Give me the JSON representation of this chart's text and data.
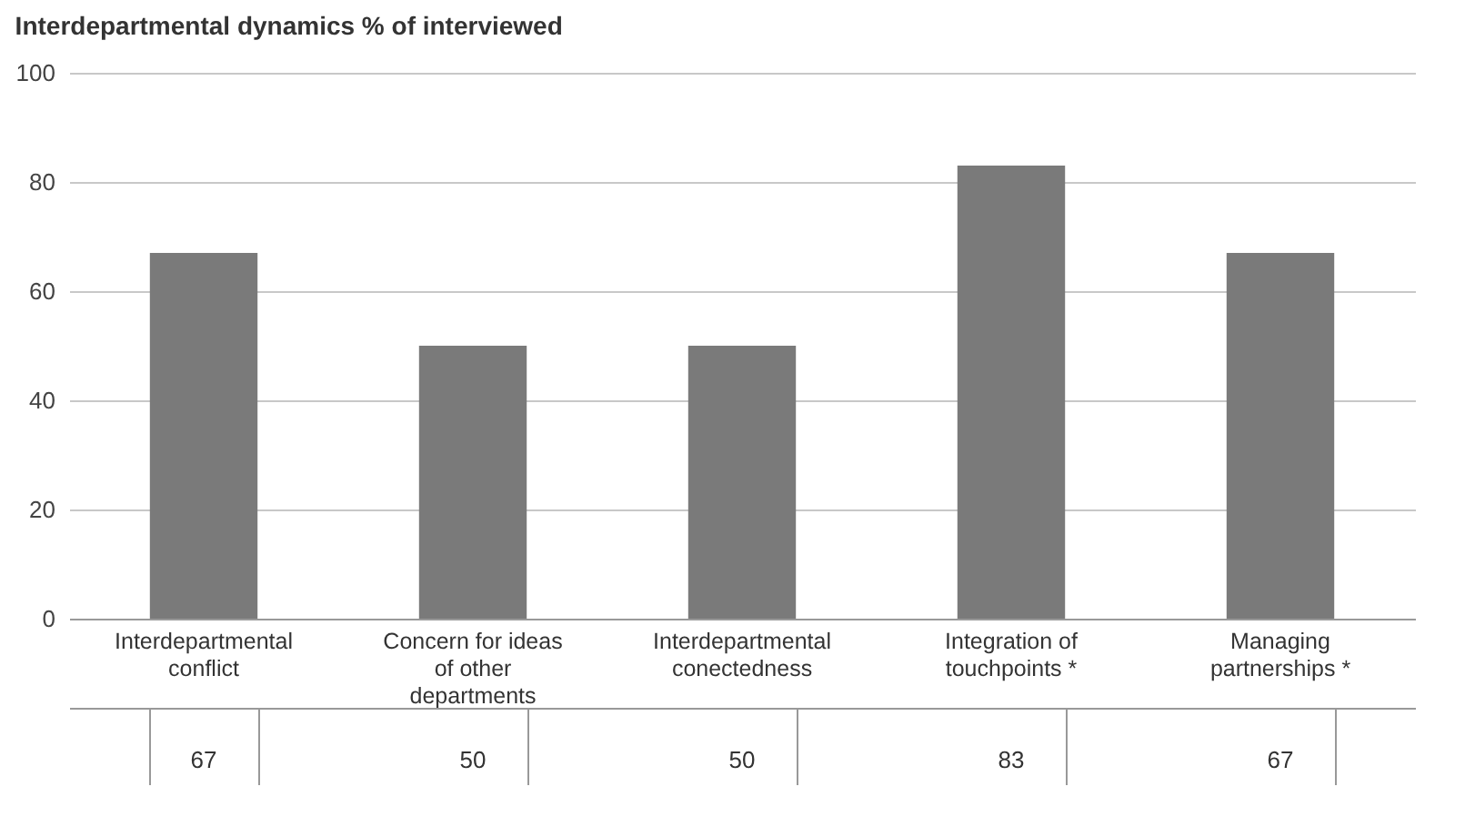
{
  "chart_data": {
    "type": "bar",
    "title": "Interdepartmental dynamics % of interviewed",
    "categories": [
      "Interdepartmental conflict",
      "Concern for ideas of other departments",
      "Interdepartmental conectedness",
      "Integration of touchpoints *",
      "Managing partnerships *"
    ],
    "values": [
      67,
      50,
      50,
      83,
      67
    ],
    "color": "#7a7a7a",
    "ylim": [
      0,
      100
    ],
    "yticks": [
      0,
      20,
      40,
      60,
      80,
      100
    ],
    "grid": "y",
    "data_labels": true
  }
}
